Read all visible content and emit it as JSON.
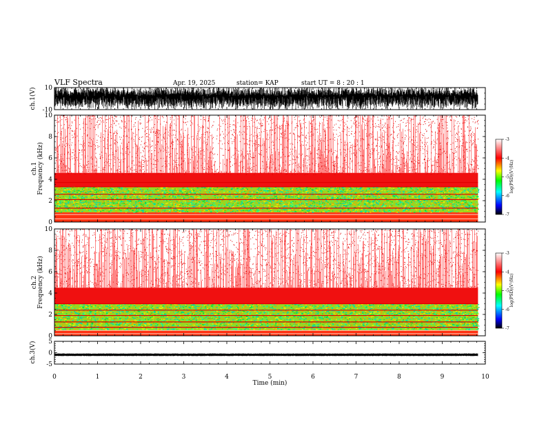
{
  "header": {
    "title": "VLF Spectra",
    "date": "Apr. 19, 2025",
    "station": "station= KAP",
    "start_ut": "start  UT =   8 : 20 : 1"
  },
  "chart_data": [
    {
      "type": "line",
      "panel": "ch.1 waveform",
      "ylabel": "ch.1(V)",
      "ylim": [
        -10,
        10
      ],
      "yticks": [
        {
          "v": 10,
          "label": "10"
        },
        {
          "v": -10,
          "label": "-10"
        }
      ],
      "xlim": [
        0,
        10
      ],
      "x_data_end": 9.83,
      "description_values": {
        "amplitude_envelope": "dense noise, mostly 3 to 10 V with dips to -10 V"
      }
    },
    {
      "type": "heatmap",
      "panel": "ch.1 spectrogram",
      "ylabel": "ch.1\nFrequency  (kHz)",
      "ylabel_lines": [
        "ch.1",
        "Frequency  (kHz)"
      ],
      "xlim": [
        0,
        10
      ],
      "ylim": [
        0,
        10
      ],
      "yticks": [
        0,
        2,
        4,
        6,
        8,
        10
      ],
      "x_data_end": 9.83,
      "bands_khz": {
        "low_green_band": [
          0.9,
          3.3
        ],
        "red_dense_band": [
          3.3,
          4.6
        ],
        "speckled_upper": [
          4.6,
          10.0
        ]
      },
      "colorbar": {
        "label": "log(PSD)(V²/Hz)",
        "min": -7,
        "max": -3,
        "ticks": [
          {
            "v": -3,
            "label": "-3"
          },
          {
            "v": -4,
            "label": "-4"
          },
          {
            "v": -5,
            "label": "-5"
          },
          {
            "v": -6,
            "label": "-6"
          },
          {
            "v": -7,
            "label": "-7"
          }
        ],
        "colors": [
          "#000000",
          "#0000ff",
          "#00ffff",
          "#00ff00",
          "#ffff00",
          "#ff0000",
          "#ffffff"
        ]
      }
    },
    {
      "type": "heatmap",
      "panel": "ch.2 spectrogram",
      "ylabel": "ch.2\nFrequency  (kHz)",
      "ylabel_lines": [
        "ch.2",
        "Frequency  (kHz)"
      ],
      "xlim": [
        0,
        10
      ],
      "ylim": [
        0,
        10
      ],
      "yticks": [
        0,
        2,
        4,
        6,
        8,
        10
      ],
      "x_data_end": 9.83,
      "bands_khz": {
        "low_green_band": [
          0.5,
          3.0
        ],
        "red_dense_band": [
          3.0,
          4.5
        ],
        "speckled_upper": [
          4.5,
          10.0
        ]
      },
      "colorbar": {
        "label": "log(PSD)(V²/Hz)",
        "min": -7,
        "max": -3,
        "ticks": [
          {
            "v": -3,
            "label": "-3"
          },
          {
            "v": -4,
            "label": "-4"
          },
          {
            "v": -5,
            "label": "-5"
          },
          {
            "v": -6,
            "label": "-6"
          },
          {
            "v": -7,
            "label": "-7"
          }
        ],
        "colors": [
          "#000000",
          "#0000ff",
          "#00ffff",
          "#00ff00",
          "#ffff00",
          "#ff0000",
          "#ffffff"
        ]
      }
    },
    {
      "type": "line",
      "panel": "ch.3 waveform",
      "ylabel": "ch.3(V)",
      "ylim": [
        -5,
        5
      ],
      "yticks": [
        {
          "v": 5,
          "label": "5"
        },
        {
          "v": 0,
          "label": "0"
        },
        {
          "v": -5,
          "label": "-5"
        }
      ],
      "xlim": [
        0,
        10
      ],
      "x_data_end": 9.83,
      "description_values": {
        "trace_band_volts": [
          -1.3,
          -0.5
        ]
      }
    }
  ],
  "xaxis": {
    "xlabel": "Time  (min)",
    "ticks": [
      "0",
      "1",
      "2",
      "3",
      "4",
      "5",
      "6",
      "7",
      "8",
      "9",
      "10"
    ]
  }
}
